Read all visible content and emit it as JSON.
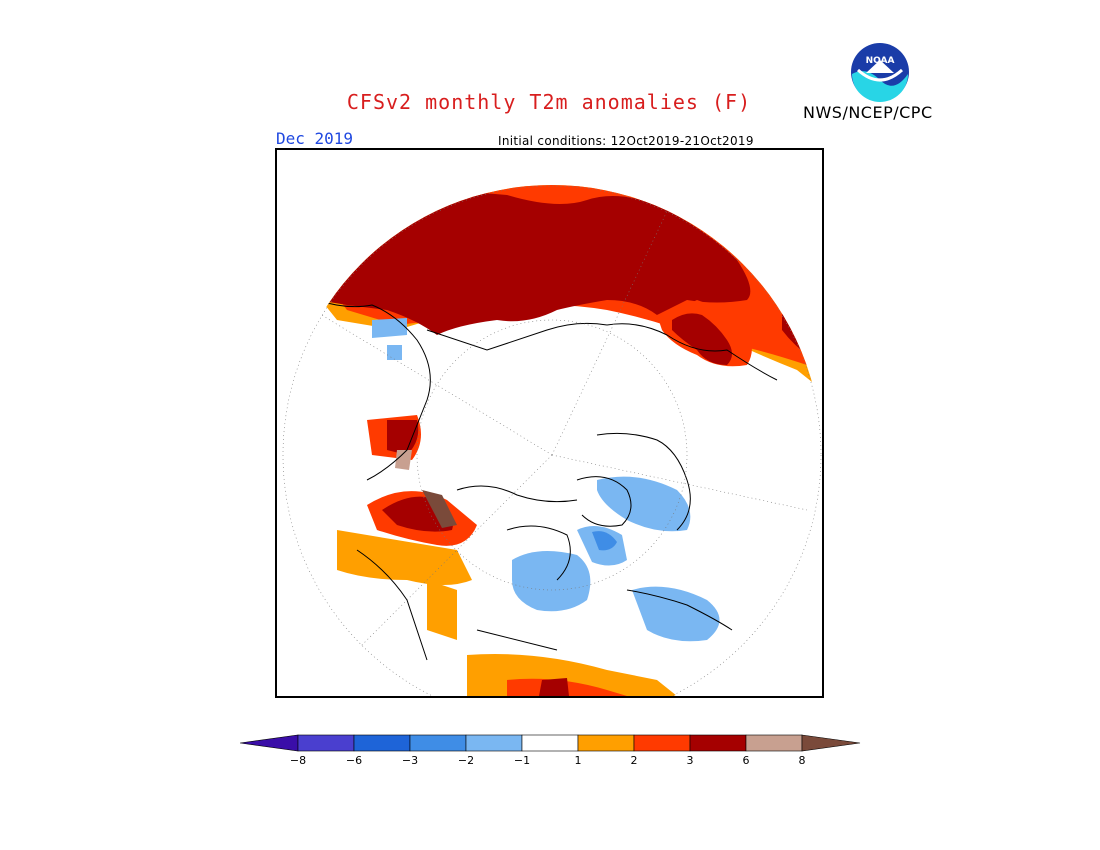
{
  "header": {
    "title": "CFSv2 monthly T2m anomalies (F)",
    "agency": "NWS/NCEP/CPC",
    "logo_text": "NOAA",
    "valid_month": "Dec 2019",
    "initial_conditions": "Initial conditions: 12Oct2019-21Oct2019"
  },
  "map": {
    "projection": "north-polar-stereographic",
    "variable": "T2m anomalies",
    "units": "F"
  },
  "legend": {
    "boundaries": [
      "-8",
      "-6",
      "-3",
      "-2",
      "-1",
      "1",
      "2",
      "3",
      "6",
      "8"
    ],
    "colors": [
      "#3a0ea8",
      "#4a3fcf",
      "#1e64d8",
      "#3f8de6",
      "#7ab7f2",
      "#ffffff",
      "#ff9f00",
      "#ff3a00",
      "#a50000",
      "#c8a090",
      "#7a4a3a"
    ]
  },
  "colors": {
    "title": "#d81e1e",
    "valid_month": "#1f48e0",
    "very_warm": "#a50000",
    "warm": "#ff3a00",
    "mild": "#ff9f00",
    "cool": "#7ab7f2",
    "cooler": "#3f8de6"
  }
}
